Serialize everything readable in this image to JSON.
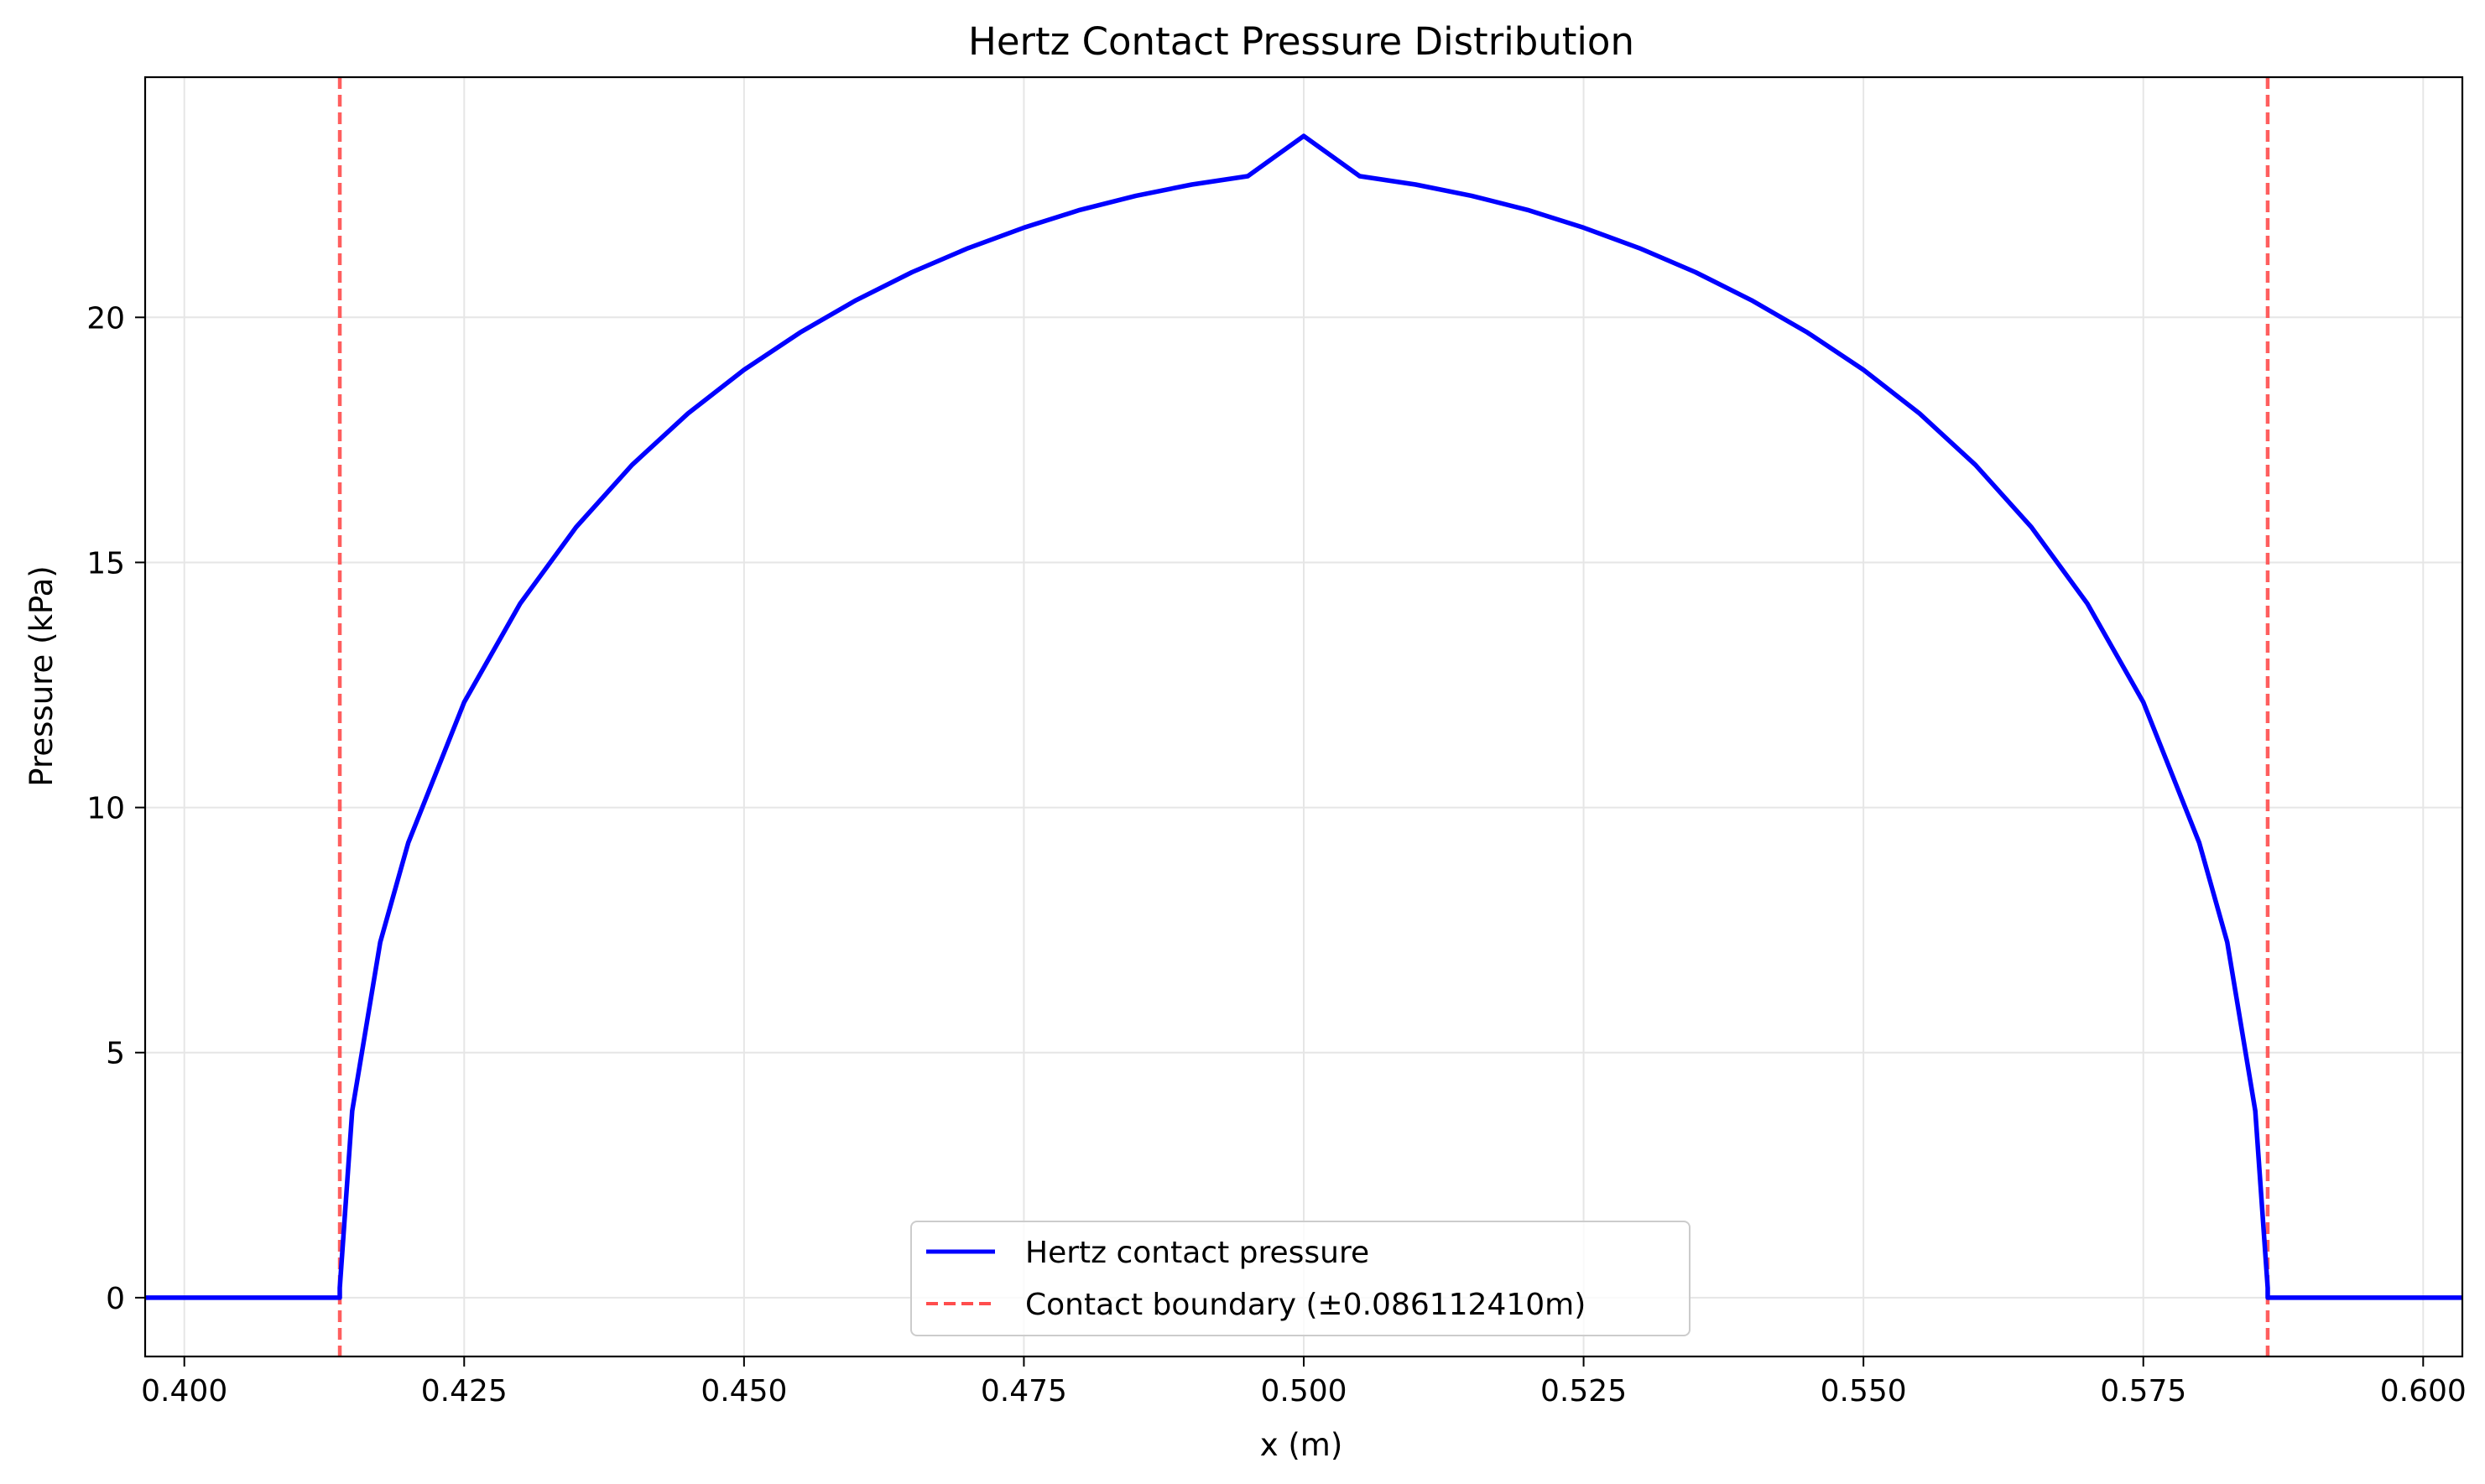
{
  "chart_data": {
    "type": "line",
    "title": "Hertz Contact Pressure Distribution",
    "xlabel": "x (m)",
    "ylabel": "Pressure (kPa)",
    "xlim": [
      0.3965,
      0.6035
    ],
    "ylim": [
      -1.2,
      24.9
    ],
    "xticks": [
      0.4,
      0.425,
      0.45,
      0.475,
      0.5,
      0.525,
      0.55,
      0.575,
      0.6
    ],
    "xtick_labels": [
      "0.400",
      "0.425",
      "0.450",
      "0.475",
      "0.500",
      "0.525",
      "0.550",
      "0.575",
      "0.600"
    ],
    "yticks": [
      0,
      5,
      10,
      15,
      20
    ],
    "ytick_labels": [
      "0",
      "5",
      "10",
      "15",
      "20"
    ],
    "grid": true,
    "legend_position": "lower center",
    "series": [
      {
        "name": "Hertz contact pressure",
        "style": "solid",
        "color": "#0000ff",
        "x": [
          0.3965,
          0.41389,
          0.41389,
          0.415,
          0.4175,
          0.42,
          0.425,
          0.43,
          0.435,
          0.44,
          0.445,
          0.45,
          0.455,
          0.46,
          0.465,
          0.47,
          0.475,
          0.48,
          0.485,
          0.49,
          0.495,
          0.5,
          0.505,
          0.51,
          0.515,
          0.52,
          0.525,
          0.53,
          0.535,
          0.54,
          0.545,
          0.55,
          0.555,
          0.56,
          0.565,
          0.57,
          0.575,
          0.58,
          0.5825,
          0.585,
          0.58611,
          0.58611,
          0.6035
        ],
        "y": [
          0,
          0,
          0.2,
          3.81,
          7.25,
          9.28,
          12.15,
          14.16,
          15.72,
          16.99,
          18.04,
          18.93,
          19.69,
          20.35,
          20.92,
          21.41,
          21.83,
          22.19,
          22.48,
          22.71,
          22.88,
          23.7,
          22.88,
          22.71,
          22.48,
          22.19,
          21.83,
          21.41,
          20.92,
          20.35,
          19.69,
          18.93,
          18.04,
          16.99,
          15.72,
          14.16,
          12.15,
          9.28,
          7.25,
          3.81,
          0.2,
          0,
          0
        ]
      },
      {
        "name": "Contact boundary (±0.086112410m)",
        "style": "dashed",
        "color": "#ff4d4d",
        "x": [
          0.41389,
          0.58611
        ],
        "y": [
          null,
          null
        ]
      }
    ]
  }
}
